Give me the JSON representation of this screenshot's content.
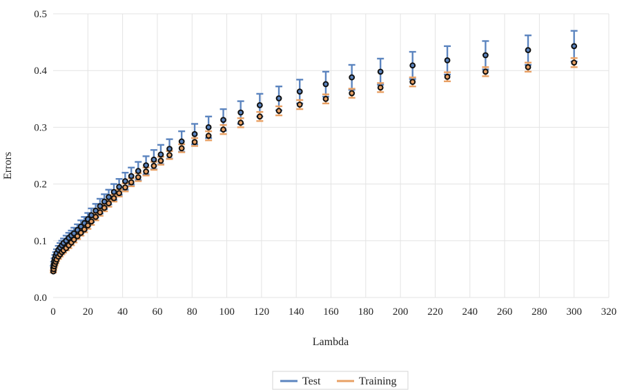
{
  "chart_data": {
    "type": "scatter",
    "title": "",
    "xlabel": "Lambda",
    "ylabel": "Errors",
    "xlim": [
      0,
      320
    ],
    "ylim": [
      0,
      0.5
    ],
    "x_ticks": [
      0,
      20,
      40,
      60,
      80,
      100,
      120,
      140,
      160,
      180,
      200,
      220,
      240,
      260,
      280,
      300,
      320
    ],
    "y_ticks": [
      0.0,
      0.1,
      0.2,
      0.3,
      0.4,
      0.5
    ],
    "x_tick_labels": [
      "0",
      "20",
      "40",
      "60",
      "80",
      "100",
      "120",
      "140",
      "160",
      "180",
      "200",
      "220",
      "240",
      "260",
      "280",
      "300",
      "320"
    ],
    "y_tick_labels": [
      "0.0",
      "0.1",
      "0.2",
      "0.3",
      "0.4",
      "0.5"
    ],
    "grid": true,
    "legend_position": "bottom-center",
    "x": [
      0.1,
      0.3,
      0.6,
      1.0,
      1.5,
      2.0,
      3.0,
      4.0,
      5.0,
      6.0,
      7.5,
      9.0,
      10.5,
      12.0,
      14.0,
      16.0,
      18.0,
      20.0,
      22.0,
      24.5,
      27.0,
      29.5,
      32.0,
      35.0,
      38.0,
      41.5,
      45.0,
      49.0,
      53.5,
      58.0,
      62.0,
      67.0,
      74.0,
      81.5,
      89.5,
      98.0,
      108.0,
      119.0,
      130.0,
      142.0,
      157.0,
      172.0,
      188.5,
      207.0,
      227.0,
      249.0,
      273.5,
      300.0
    ],
    "series": [
      {
        "name": "Test",
        "color": "#5b84bf",
        "values": [
          0.052,
          0.058,
          0.064,
          0.069,
          0.074,
          0.078,
          0.084,
          0.088,
          0.092,
          0.096,
          0.1,
          0.105,
          0.109,
          0.113,
          0.119,
          0.125,
          0.131,
          0.138,
          0.145,
          0.153,
          0.161,
          0.169,
          0.177,
          0.186,
          0.195,
          0.205,
          0.214,
          0.223,
          0.233,
          0.243,
          0.252,
          0.262,
          0.275,
          0.288,
          0.3,
          0.313,
          0.326,
          0.339,
          0.351,
          0.363,
          0.376,
          0.388,
          0.398,
          0.409,
          0.418,
          0.427,
          0.436,
          0.443
        ],
        "error": [
          0.004,
          0.005,
          0.005,
          0.006,
          0.006,
          0.007,
          0.007,
          0.008,
          0.008,
          0.008,
          0.009,
          0.009,
          0.009,
          0.01,
          0.01,
          0.011,
          0.011,
          0.011,
          0.012,
          0.012,
          0.013,
          0.013,
          0.013,
          0.014,
          0.014,
          0.015,
          0.015,
          0.016,
          0.016,
          0.017,
          0.017,
          0.017,
          0.018,
          0.018,
          0.019,
          0.019,
          0.02,
          0.02,
          0.021,
          0.021,
          0.022,
          0.022,
          0.023,
          0.024,
          0.025,
          0.025,
          0.026,
          0.027
        ]
      },
      {
        "name": "Training",
        "color": "#e8a064",
        "values": [
          0.046,
          0.05,
          0.055,
          0.059,
          0.063,
          0.067,
          0.072,
          0.076,
          0.08,
          0.083,
          0.087,
          0.092,
          0.097,
          0.102,
          0.108,
          0.114,
          0.12,
          0.127,
          0.134,
          0.142,
          0.15,
          0.158,
          0.166,
          0.175,
          0.184,
          0.194,
          0.203,
          0.212,
          0.222,
          0.232,
          0.241,
          0.251,
          0.263,
          0.274,
          0.285,
          0.296,
          0.308,
          0.319,
          0.329,
          0.34,
          0.35,
          0.36,
          0.37,
          0.38,
          0.389,
          0.398,
          0.406,
          0.414
        ],
        "error": [
          0.002,
          0.002,
          0.003,
          0.003,
          0.003,
          0.003,
          0.004,
          0.004,
          0.004,
          0.004,
          0.004,
          0.005,
          0.005,
          0.005,
          0.005,
          0.005,
          0.005,
          0.006,
          0.006,
          0.006,
          0.006,
          0.006,
          0.006,
          0.006,
          0.006,
          0.007,
          0.007,
          0.007,
          0.007,
          0.007,
          0.007,
          0.007,
          0.007,
          0.007,
          0.008,
          0.008,
          0.008,
          0.008,
          0.008,
          0.008,
          0.008,
          0.008,
          0.008,
          0.008,
          0.008,
          0.008,
          0.008,
          0.008
        ]
      }
    ]
  }
}
